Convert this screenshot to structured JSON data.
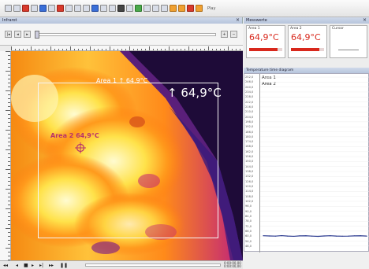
{
  "toolbar": {
    "extra_label": "Play"
  },
  "left_panel": {
    "title": "Infrarot",
    "image": {
      "area1_label": "Area 1 ↑ 64,9°C",
      "area2_label": "Area 2 64,9°C",
      "max_readout": "↑ 64,9°C",
      "max_value_c": 64.9
    },
    "transport": {
      "time_top": "0:00:00,00",
      "time_bottom": "0:00:00,00"
    }
  },
  "right_panel": {
    "title": "Messwerte",
    "cards": [
      {
        "title": "Area 1",
        "value": "64,9°C",
        "level": 0.85
      },
      {
        "title": "Area 2",
        "value": "64,9°C",
        "level": 0.85
      },
      {
        "title": "Cursor",
        "value": "",
        "level": 0
      }
    ],
    "graph": {
      "title": "Temperature time diagram",
      "legend": [
        "Area 1",
        "Area 2"
      ],
      "line_color": "#2b3a8f"
    }
  },
  "colors": {
    "accent_red": "#d8281c",
    "thermal_hot": "#fff8c0",
    "thermal_cold": "#1a0a35"
  },
  "chart_data": {
    "type": "line",
    "title": "Temperature time diagram",
    "ylim": [
      45.0,
      252.0
    ],
    "y_ticks": [
      "252,0",
      "246,0",
      "240,0",
      "234,0",
      "228,0",
      "222,0",
      "216,0",
      "210,0",
      "204,0",
      "198,0",
      "192,0",
      "186,0",
      "180,0",
      "174,0",
      "168,0",
      "162,0",
      "156,0",
      "150,0",
      "144,0",
      "138,0",
      "132,0",
      "126,0",
      "120,0",
      "114,0",
      "108,0",
      "102,0",
      "96,0",
      "90,0",
      "84,0",
      "78,0",
      "72,0",
      "66,0",
      "60,0",
      "54,0",
      "48,0"
    ],
    "series": [
      {
        "name": "Area 1",
        "values": [
          60.5,
          60.2,
          60.0,
          60.6,
          60.1,
          59.8,
          60.3,
          60.4,
          60.0,
          59.7,
          60.2,
          60.5,
          60.1,
          59.9,
          60.0,
          60.3,
          60.4,
          60.1
        ]
      }
    ]
  }
}
